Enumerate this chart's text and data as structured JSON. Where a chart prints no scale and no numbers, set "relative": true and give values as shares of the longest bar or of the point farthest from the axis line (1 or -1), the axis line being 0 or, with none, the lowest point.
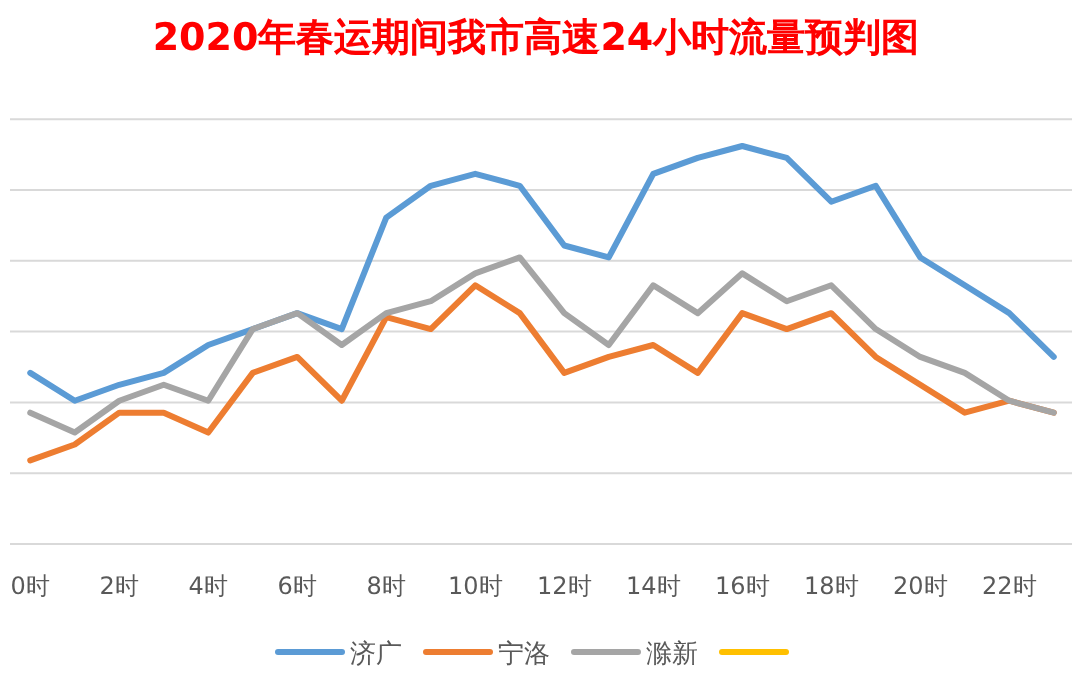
{
  "chart_data": {
    "type": "line",
    "title": "2020年春运期间我市高速24小时流量预判图",
    "relative": true,
    "grid": "y",
    "legend": "bottom",
    "marker": "none",
    "line_style": "solid",
    "categories": [
      "0时",
      null,
      "2时",
      null,
      "4时",
      null,
      "6时",
      null,
      "8时",
      null,
      "10时",
      null,
      "12时",
      null,
      "14时",
      null,
      "16时",
      null,
      "18时",
      null,
      "20时",
      null,
      "22时",
      null
    ],
    "series": [
      {
        "name": "济广",
        "color": "#5b9bd5",
        "values": [
          0.43,
          0.36,
          0.4,
          0.43,
          0.5,
          0.54,
          0.58,
          0.54,
          0.82,
          0.9,
          0.93,
          0.9,
          0.75,
          0.72,
          0.93,
          0.97,
          1,
          0.97,
          0.86,
          0.9,
          0.72,
          0.65,
          0.58,
          0.47
        ]
      },
      {
        "name": "宁洛",
        "color": "#ed7d31",
        "values": [
          0.21,
          0.25,
          0.33,
          0.33,
          0.28,
          0.43,
          0.47,
          0.36,
          0.57,
          0.54,
          0.65,
          0.58,
          0.43,
          0.47,
          0.5,
          0.43,
          0.58,
          0.54,
          0.58,
          0.47,
          0.4,
          0.33,
          0.36,
          0.33
        ]
      },
      {
        "name": "滁新",
        "color": "#a5a5a5",
        "values": [
          0.33,
          0.28,
          0.36,
          0.4,
          0.36,
          0.54,
          0.58,
          0.5,
          0.58,
          0.61,
          0.68,
          0.72,
          0.58,
          0.5,
          0.65,
          0.58,
          0.68,
          0.61,
          0.65,
          0.54,
          0.47,
          0.43,
          0.36,
          0.33
        ]
      },
      {
        "color": "#ffc000",
        "values": [
          null,
          null,
          null,
          null,
          null,
          null,
          null,
          null,
          null,
          null,
          null,
          null,
          null,
          null,
          null,
          null,
          null,
          null,
          null,
          null,
          null,
          null,
          null,
          null
        ]
      }
    ]
  }
}
